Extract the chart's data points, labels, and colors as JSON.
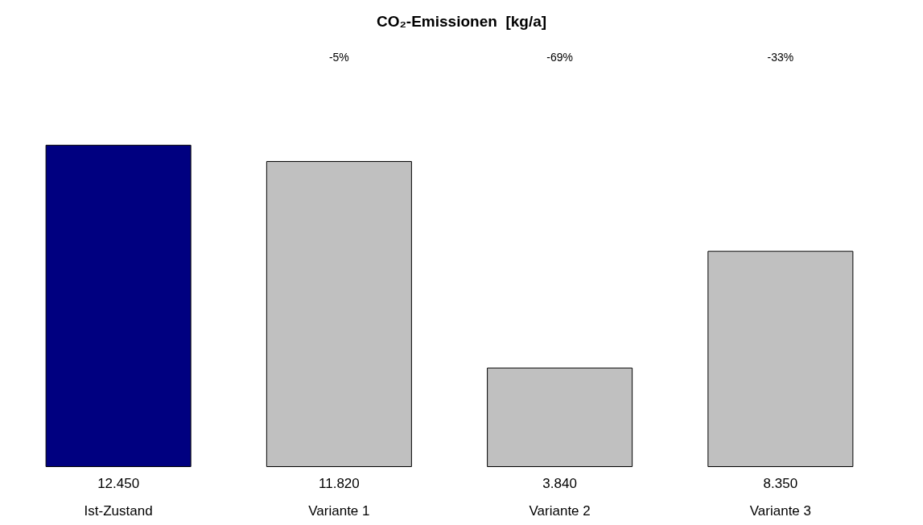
{
  "chart_data": {
    "type": "bar",
    "title": "CO₂-Emissionen  [kg/a]",
    "categories": [
      "Ist-Zustand",
      "Variante 1",
      "Variante 2",
      "Variante 3"
    ],
    "values": [
      12450,
      11820,
      3840,
      8350
    ],
    "value_labels": [
      "12.450",
      "11.820",
      "3.840",
      "8.350"
    ],
    "colors": [
      "#000080",
      "#c0c0c0",
      "#c0c0c0",
      "#c0c0c0"
    ],
    "annotations": [
      "-5%",
      "-69%",
      "-33%"
    ]
  }
}
